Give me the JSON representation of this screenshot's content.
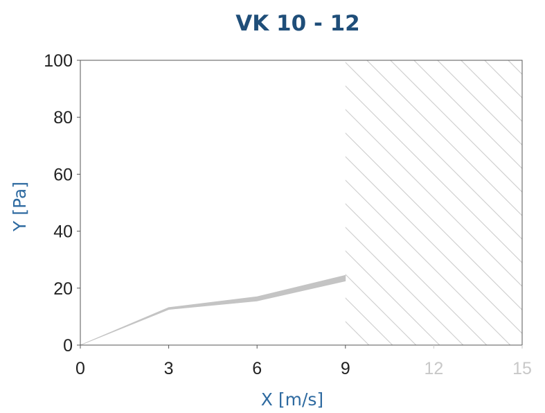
{
  "colors": {
    "title": "#1f4e79",
    "axis_label": "#2e6aa0",
    "tick": "#222222",
    "tick_faded": "#c8c8c8",
    "frame": "#555555",
    "band": "#c4c4c4",
    "hatch": "#cfcfcf"
  },
  "chart_data": {
    "type": "area",
    "title": "VK 10 - 12",
    "xlabel": "X [m/s]",
    "ylabel": "Y [Pa]",
    "xlim": [
      0,
      15
    ],
    "ylim": [
      0,
      100
    ],
    "xticks": [
      "0",
      "3",
      "6",
      "9",
      "12",
      "15"
    ],
    "xticks_faded": [
      "12",
      "15"
    ],
    "yticks": [
      "0",
      "20",
      "40",
      "60",
      "80",
      "100"
    ],
    "grid": false,
    "legend": "none",
    "hatched_region": {
      "x_from": 9,
      "x_to": 15
    },
    "series": [
      {
        "x": [
          0,
          3,
          6,
          9
        ],
        "y_low": [
          0,
          12.5,
          15.5,
          22.5
        ],
        "y_high": [
          0,
          13.2,
          17,
          24.5
        ]
      }
    ]
  }
}
